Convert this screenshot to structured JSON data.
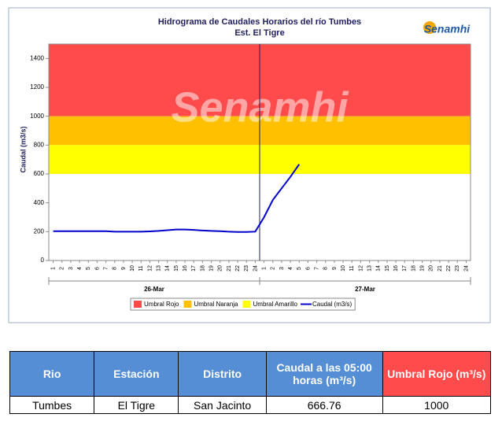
{
  "chart_data": {
    "type": "line",
    "title": "Hidrograma de Caudales Horarios del río Tumbes",
    "subtitle": "Est. El Tigre",
    "logo": "Senamhi",
    "ylabel": "Caudal  (m3/s)",
    "categories": [
      "1",
      "2",
      "3",
      "4",
      "5",
      "6",
      "7",
      "8",
      "9",
      "10",
      "11",
      "12",
      "13",
      "14",
      "15",
      "16",
      "17",
      "18",
      "19",
      "20",
      "21",
      "22",
      "23",
      "24",
      "1",
      "2",
      "3",
      "4",
      "5",
      "6",
      "7",
      "8",
      "9",
      "10",
      "11",
      "12",
      "13",
      "14",
      "15",
      "16",
      "17",
      "18",
      "19",
      "20",
      "21",
      "22",
      "23",
      "24"
    ],
    "groups": [
      "26-Mar",
      "27-Mar"
    ],
    "ylim": [
      0,
      1500
    ],
    "yticks": [
      0,
      200,
      400,
      600,
      800,
      1000,
      1200,
      1400
    ],
    "bands": [
      {
        "name": "Umbral Rojo",
        "color": "#ff4b4b",
        "range": [
          1000,
          1500
        ]
      },
      {
        "name": "Umbral Naranja",
        "color": "#ffc000",
        "range": [
          800,
          1000
        ]
      },
      {
        "name": "Umbral Amarillo",
        "color": "#ffff00",
        "range": [
          600,
          800
        ]
      }
    ],
    "series": [
      {
        "name": "Caudal (m3/s)",
        "color": "#0000cc",
        "values": [
          203,
          203,
          203,
          203,
          203,
          203,
          203,
          200,
          200,
          200,
          200,
          202,
          205,
          210,
          215,
          215,
          212,
          208,
          205,
          203,
          200,
          198,
          198,
          200,
          300,
          420,
          500,
          580,
          666.76,
          null,
          null,
          null,
          null,
          null,
          null,
          null,
          null,
          null,
          null,
          null,
          null,
          null,
          null,
          null,
          null,
          null,
          null,
          null
        ]
      }
    ]
  },
  "table": {
    "headers": [
      "Rio",
      "Estación",
      "Distrito",
      "Caudal a las 05:00 horas (m³/s)",
      "Umbral Rojo (m³/s)"
    ],
    "rows": [
      [
        "Tumbes",
        "El Tigre",
        "San Jacinto",
        666.76,
        1000
      ]
    ]
  }
}
